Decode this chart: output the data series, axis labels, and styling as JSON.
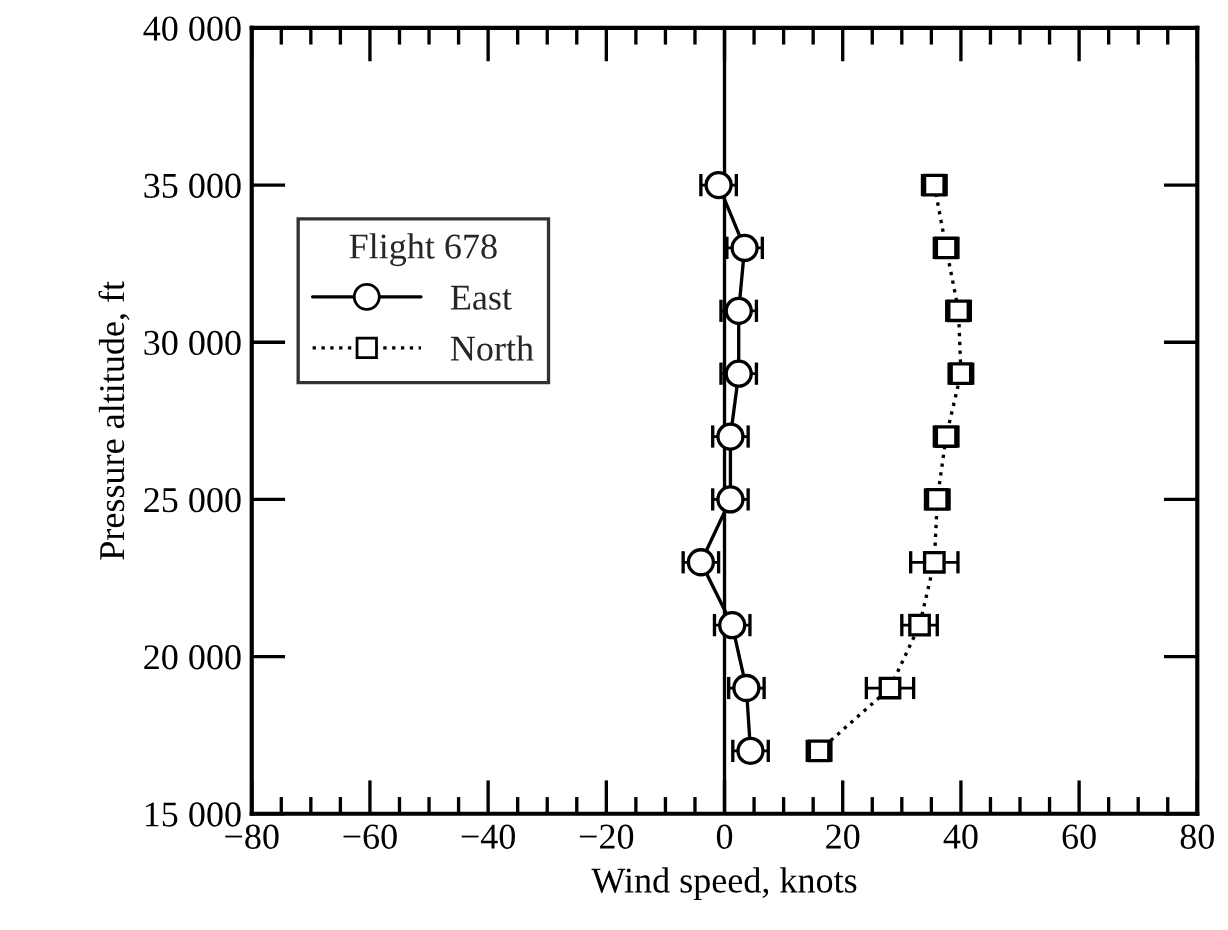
{
  "chart_data": {
    "type": "line",
    "xlabel": "Wind speed, knots",
    "ylabel": "Pressure altitude, ft",
    "legend_title": "Flight 678",
    "legend": "top left",
    "xlim": [
      -80,
      80
    ],
    "xticks": [
      {
        "value": -80,
        "label": "−80"
      },
      {
        "value": -60,
        "label": "−60"
      },
      {
        "value": -40,
        "label": "−40"
      },
      {
        "value": -20,
        "label": "−20"
      },
      0,
      20,
      40,
      60,
      80
    ],
    "ylim": [
      15000,
      40000
    ],
    "yticks": [
      {
        "value": 15000,
        "label": "15 000"
      },
      {
        "value": 20000,
        "label": "20 000"
      },
      {
        "value": 25000,
        "label": "25 000"
      },
      {
        "value": 30000,
        "label": "30 000"
      },
      {
        "value": 35000,
        "label": "35 000"
      },
      {
        "value": 40000,
        "label": "40 000"
      }
    ],
    "grid": false,
    "ref_lines": [
      {
        "axis": "x",
        "value": 0,
        "color": "#000000",
        "line_style": "solid"
      }
    ],
    "series": [
      {
        "name": "East",
        "color": "#000000",
        "marker": "circle",
        "line_style": "solid",
        "x": [
          -1,
          3.4,
          2.4,
          2.4,
          1,
          1,
          -4,
          1.3,
          3.7,
          4.4
        ],
        "values": [
          35000,
          33000,
          31000,
          29000,
          27000,
          25000,
          23000,
          21000,
          19000,
          17000
        ],
        "xerrors": [
          3,
          3,
          3,
          3,
          3,
          3,
          3,
          3,
          3,
          3
        ]
      },
      {
        "name": "North",
        "color": "#000000",
        "marker": "square",
        "line_style": "dotted",
        "x": [
          35.5,
          37.5,
          39.6,
          40,
          37.5,
          36,
          35.5,
          33,
          28,
          16
        ],
        "values": [
          35000,
          33000,
          31000,
          29000,
          27000,
          25000,
          23000,
          21000,
          19000,
          17000
        ],
        "xerrors": [
          2,
          2,
          2,
          2,
          2,
          2,
          4,
          3,
          4,
          2
        ]
      }
    ]
  }
}
